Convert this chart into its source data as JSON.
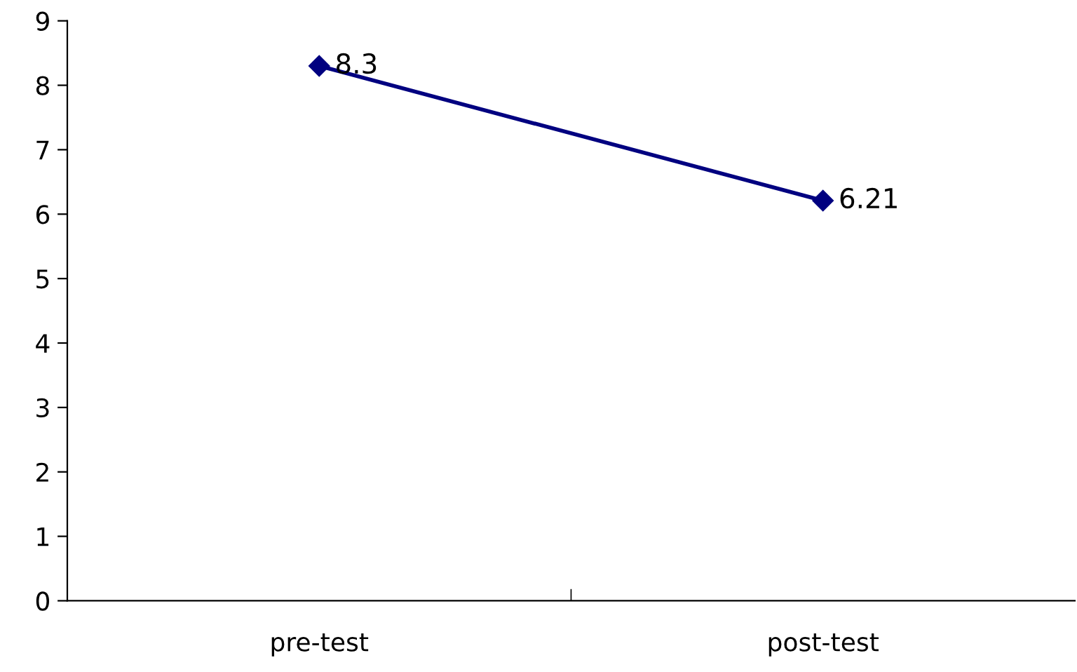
{
  "chart_data": {
    "type": "line",
    "categories": [
      "pre-test",
      "post-test"
    ],
    "series": [
      {
        "color": "#000080",
        "values": [
          8.3,
          6.21
        ]
      }
    ],
    "ylim": [
      0,
      9
    ],
    "yticks": [
      0,
      1,
      2,
      3,
      4,
      5,
      6,
      7,
      8,
      9
    ],
    "marker": "diamond",
    "line_style": "solid",
    "data_labels": true,
    "grid": false,
    "legend": false
  }
}
